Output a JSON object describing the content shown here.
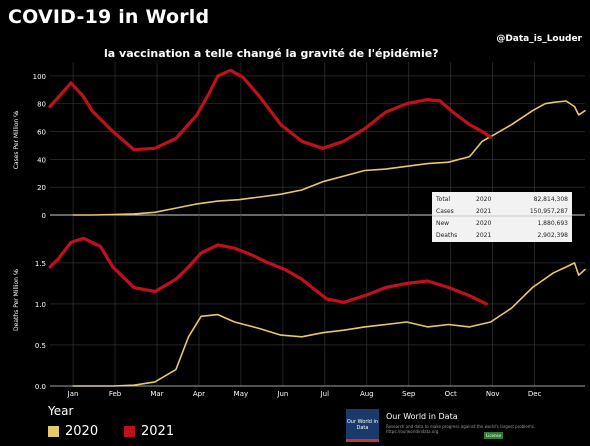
{
  "header": {
    "title": "COVID-19 in World",
    "subtitle": "la vaccination  a telle changé la  gravité de l'épidémie?",
    "credit": "@Data_is_Louder"
  },
  "colors": {
    "background": "#000000",
    "series_2020": "#e6c96a",
    "series_2021": "#c0101a",
    "grid": "#3a3a3a",
    "zero_line": "#cfcfcf",
    "text": "#ffffff",
    "stats_box": "#f2f2f2"
  },
  "legend": {
    "title": "Year",
    "items": [
      {
        "label": "2020",
        "color": "#e6c96a"
      },
      {
        "label": "2021",
        "color": "#c0101a"
      }
    ]
  },
  "stats_box": {
    "rows": [
      [
        "Total",
        "2020",
        "82,814,308"
      ],
      [
        "Cases",
        "2021",
        "150,957,287"
      ],
      [
        "New",
        "2020",
        "1,880,693"
      ],
      [
        "Deaths",
        "2021",
        "2,902,398"
      ]
    ]
  },
  "footer": {
    "logo_text": "Our World in Data",
    "name": "Our World in Data",
    "description_lines": [
      "Research and data to make progress against the world's largest problems.",
      "https://ourworldindata.org"
    ],
    "badge": "License"
  },
  "chart_data": [
    {
      "type": "line",
      "ylabel": "Cases Per Million  ℅",
      "ylim": [
        -5,
        110
      ],
      "yticks": [
        0,
        20,
        40,
        60,
        80,
        100
      ],
      "x_axis": "shared months (Jan–Dec)",
      "series": [
        {
          "name": "2020",
          "points": [
            [
              0.55,
              0
            ],
            [
              1,
              0
            ],
            [
              1.5,
              0.3
            ],
            [
              2,
              0.8
            ],
            [
              2.5,
              2
            ],
            [
              3,
              5
            ],
            [
              3.5,
              8
            ],
            [
              4,
              10
            ],
            [
              4.5,
              11
            ],
            [
              5,
              13
            ],
            [
              5.5,
              15
            ],
            [
              6,
              18
            ],
            [
              6.5,
              24
            ],
            [
              7,
              28
            ],
            [
              7.5,
              32
            ],
            [
              8,
              33
            ],
            [
              8.5,
              35
            ],
            [
              9,
              37
            ],
            [
              9.5,
              38
            ],
            [
              10,
              42
            ],
            [
              10.3,
              53
            ],
            [
              10.6,
              58
            ],
            [
              11,
              65
            ],
            [
              11.5,
              75
            ],
            [
              11.8,
              80
            ],
            [
              12,
              81
            ],
            [
              12.3,
              82
            ],
            [
              12.5,
              78
            ],
            [
              12.6,
              72
            ],
            [
              12.75,
              75
            ]
          ]
        },
        {
          "name": "2021",
          "points": [
            [
              0,
              78
            ],
            [
              0.3,
              88
            ],
            [
              0.5,
              95
            ],
            [
              0.8,
              85
            ],
            [
              1,
              75
            ],
            [
              1.5,
              60
            ],
            [
              2,
              47
            ],
            [
              2.5,
              48
            ],
            [
              3,
              55
            ],
            [
              3.5,
              72
            ],
            [
              3.8,
              88
            ],
            [
              4,
              100
            ],
            [
              4.3,
              104
            ],
            [
              4.6,
              99
            ],
            [
              5,
              85
            ],
            [
              5.5,
              65
            ],
            [
              6,
              53
            ],
            [
              6.5,
              48
            ],
            [
              7,
              53
            ],
            [
              7.5,
              62
            ],
            [
              8,
              74
            ],
            [
              8.5,
              80
            ],
            [
              9,
              83
            ],
            [
              9.3,
              82
            ],
            [
              9.6,
              74
            ],
            [
              10,
              65
            ],
            [
              10.3,
              60
            ],
            [
              10.5,
              56
            ]
          ]
        }
      ]
    },
    {
      "type": "line",
      "ylabel": "Deaths Per Million  ℅",
      "ylim": [
        0,
        1.95
      ],
      "yticks": [
        0.0,
        0.5,
        1.0,
        1.5
      ],
      "xticks": [
        "Jan",
        "Feb",
        "Mar",
        "Apr",
        "May",
        "Jun",
        "Jul",
        "Aug",
        "Sep",
        "Oct",
        "Nov",
        "Dec"
      ],
      "series": [
        {
          "name": "2020",
          "points": [
            [
              0.55,
              0
            ],
            [
              1,
              0
            ],
            [
              1.5,
              0
            ],
            [
              2,
              0.01
            ],
            [
              2.5,
              0.05
            ],
            [
              3,
              0.2
            ],
            [
              3.3,
              0.6
            ],
            [
              3.6,
              0.85
            ],
            [
              4,
              0.87
            ],
            [
              4.4,
              0.78
            ],
            [
              5,
              0.7
            ],
            [
              5.5,
              0.62
            ],
            [
              6,
              0.6
            ],
            [
              6.5,
              0.65
            ],
            [
              7,
              0.68
            ],
            [
              7.5,
              0.72
            ],
            [
              8,
              0.75
            ],
            [
              8.5,
              0.78
            ],
            [
              9,
              0.72
            ],
            [
              9.5,
              0.75
            ],
            [
              10,
              0.72
            ],
            [
              10.5,
              0.78
            ],
            [
              11,
              0.95
            ],
            [
              11.5,
              1.2
            ],
            [
              12,
              1.38
            ],
            [
              12.3,
              1.45
            ],
            [
              12.5,
              1.5
            ],
            [
              12.6,
              1.35
            ],
            [
              12.75,
              1.42
            ]
          ]
        },
        {
          "name": "2021",
          "points": [
            [
              0,
              1.45
            ],
            [
              0.2,
              1.55
            ],
            [
              0.5,
              1.75
            ],
            [
              0.8,
              1.8
            ],
            [
              1.2,
              1.7
            ],
            [
              1.5,
              1.45
            ],
            [
              2,
              1.2
            ],
            [
              2.5,
              1.15
            ],
            [
              3,
              1.3
            ],
            [
              3.3,
              1.45
            ],
            [
              3.6,
              1.62
            ],
            [
              4,
              1.72
            ],
            [
              4.4,
              1.68
            ],
            [
              4.8,
              1.6
            ],
            [
              5.2,
              1.5
            ],
            [
              5.6,
              1.42
            ],
            [
              6,
              1.3
            ],
            [
              6.3,
              1.18
            ],
            [
              6.6,
              1.06
            ],
            [
              7,
              1.02
            ],
            [
              7.5,
              1.1
            ],
            [
              8,
              1.2
            ],
            [
              8.5,
              1.25
            ],
            [
              9,
              1.28
            ],
            [
              9.5,
              1.2
            ],
            [
              10,
              1.1
            ],
            [
              10.4,
              1.0
            ]
          ]
        }
      ]
    }
  ]
}
